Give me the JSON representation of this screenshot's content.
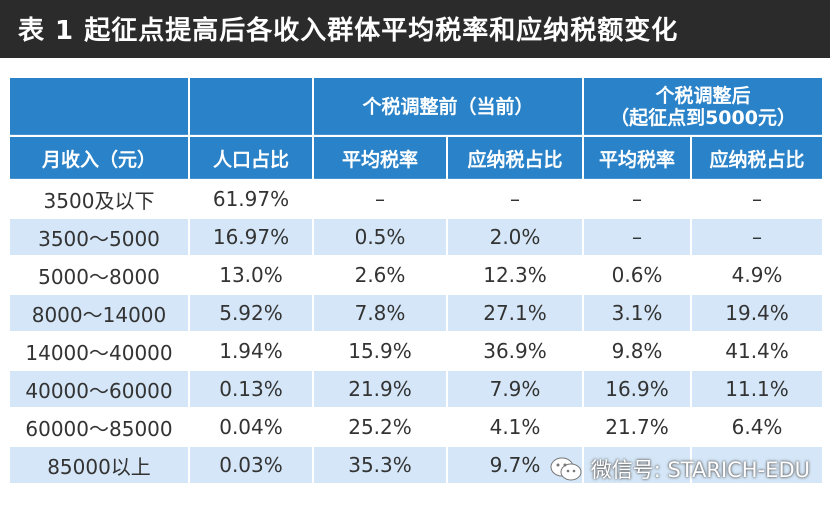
{
  "title": "表 1 起征点提高后各收入群体平均税率和应纳税额变化",
  "headers": {
    "income": "月收入（元）",
    "population": "人口占比",
    "before_group": "个税调整前（当前）",
    "after_group_line1": "个税调整后",
    "after_group_line2": "（起征点到5000元）",
    "avg_rate": "平均税率",
    "tax_share": "应纳税占比"
  },
  "rows": [
    [
      "3500及以下",
      "61.97%",
      "–",
      "–",
      "–",
      "–"
    ],
    [
      "3500～5000",
      "16.97%",
      "0.5%",
      "2.0%",
      "–",
      "–"
    ],
    [
      "5000～8000",
      "13.0%",
      "2.6%",
      "12.3%",
      "0.6%",
      "4.9%"
    ],
    [
      "8000～14000",
      "5.92%",
      "7.8%",
      "27.1%",
      "3.1%",
      "19.4%"
    ],
    [
      "14000～40000",
      "1.94%",
      "15.9%",
      "36.9%",
      "9.8%",
      "41.4%"
    ],
    [
      "40000～60000",
      "0.13%",
      "21.9%",
      "7.9%",
      "16.9%",
      "11.1%"
    ],
    [
      "60000～85000",
      "0.04%",
      "25.2%",
      "4.1%",
      "21.7%",
      "6.4%"
    ],
    [
      "85000以上",
      "0.03%",
      "35.3%",
      "9.7%",
      "",
      ""
    ]
  ],
  "watermark": "微信号: STARICH-EDU",
  "watermark_icon": "wechat-icon",
  "colors": {
    "header_bg": "#2a82c8",
    "stripe_bg": "#d4e6f7",
    "title_bg": "#2b2b2b"
  }
}
